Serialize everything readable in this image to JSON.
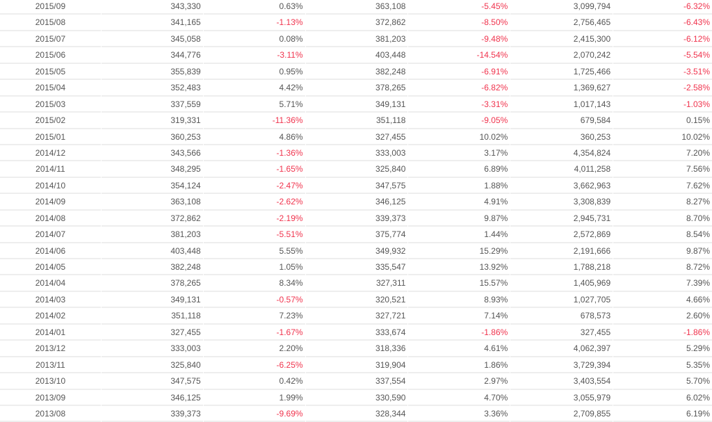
{
  "colors": {
    "text": "#555555",
    "negative": "#f0334d",
    "divider": "#eeeeee"
  },
  "table": {
    "rows": [
      [
        "2015/09",
        "343,330",
        "0.63%",
        "363,108",
        "-5.45%",
        "3,099,794",
        "-6.32%"
      ],
      [
        "2015/08",
        "341,165",
        "-1.13%",
        "372,862",
        "-8.50%",
        "2,756,465",
        "-6.43%"
      ],
      [
        "2015/07",
        "345,058",
        "0.08%",
        "381,203",
        "-9.48%",
        "2,415,300",
        "-6.12%"
      ],
      [
        "2015/06",
        "344,776",
        "-3.11%",
        "403,448",
        "-14.54%",
        "2,070,242",
        "-5.54%"
      ],
      [
        "2015/05",
        "355,839",
        "0.95%",
        "382,248",
        "-6.91%",
        "1,725,466",
        "-3.51%"
      ],
      [
        "2015/04",
        "352,483",
        "4.42%",
        "378,265",
        "-6.82%",
        "1,369,627",
        "-2.58%"
      ],
      [
        "2015/03",
        "337,559",
        "5.71%",
        "349,131",
        "-3.31%",
        "1,017,143",
        "-1.03%"
      ],
      [
        "2015/02",
        "319,331",
        "-11.36%",
        "351,118",
        "-9.05%",
        "679,584",
        "0.15%"
      ],
      [
        "2015/01",
        "360,253",
        "4.86%",
        "327,455",
        "10.02%",
        "360,253",
        "10.02%"
      ],
      [
        "2014/12",
        "343,566",
        "-1.36%",
        "333,003",
        "3.17%",
        "4,354,824",
        "7.20%"
      ],
      [
        "2014/11",
        "348,295",
        "-1.65%",
        "325,840",
        "6.89%",
        "4,011,258",
        "7.56%"
      ],
      [
        "2014/10",
        "354,124",
        "-2.47%",
        "347,575",
        "1.88%",
        "3,662,963",
        "7.62%"
      ],
      [
        "2014/09",
        "363,108",
        "-2.62%",
        "346,125",
        "4.91%",
        "3,308,839",
        "8.27%"
      ],
      [
        "2014/08",
        "372,862",
        "-2.19%",
        "339,373",
        "9.87%",
        "2,945,731",
        "8.70%"
      ],
      [
        "2014/07",
        "381,203",
        "-5.51%",
        "375,774",
        "1.44%",
        "2,572,869",
        "8.54%"
      ],
      [
        "2014/06",
        "403,448",
        "5.55%",
        "349,932",
        "15.29%",
        "2,191,666",
        "9.87%"
      ],
      [
        "2014/05",
        "382,248",
        "1.05%",
        "335,547",
        "13.92%",
        "1,788,218",
        "8.72%"
      ],
      [
        "2014/04",
        "378,265",
        "8.34%",
        "327,311",
        "15.57%",
        "1,405,969",
        "7.39%"
      ],
      [
        "2014/03",
        "349,131",
        "-0.57%",
        "320,521",
        "8.93%",
        "1,027,705",
        "4.66%"
      ],
      [
        "2014/02",
        "351,118",
        "7.23%",
        "327,721",
        "7.14%",
        "678,573",
        "2.60%"
      ],
      [
        "2014/01",
        "327,455",
        "-1.67%",
        "333,674",
        "-1.86%",
        "327,455",
        "-1.86%"
      ],
      [
        "2013/12",
        "333,003",
        "2.20%",
        "318,336",
        "4.61%",
        "4,062,397",
        "5.29%"
      ],
      [
        "2013/11",
        "325,840",
        "-6.25%",
        "319,904",
        "1.86%",
        "3,729,394",
        "5.35%"
      ],
      [
        "2013/10",
        "347,575",
        "0.42%",
        "337,554",
        "2.97%",
        "3,403,554",
        "5.70%"
      ],
      [
        "2013/09",
        "346,125",
        "1.99%",
        "330,590",
        "4.70%",
        "3,055,979",
        "6.02%"
      ],
      [
        "2013/08",
        "339,373",
        "-9.69%",
        "328,344",
        "3.36%",
        "2,709,855",
        "6.19%"
      ]
    ]
  }
}
